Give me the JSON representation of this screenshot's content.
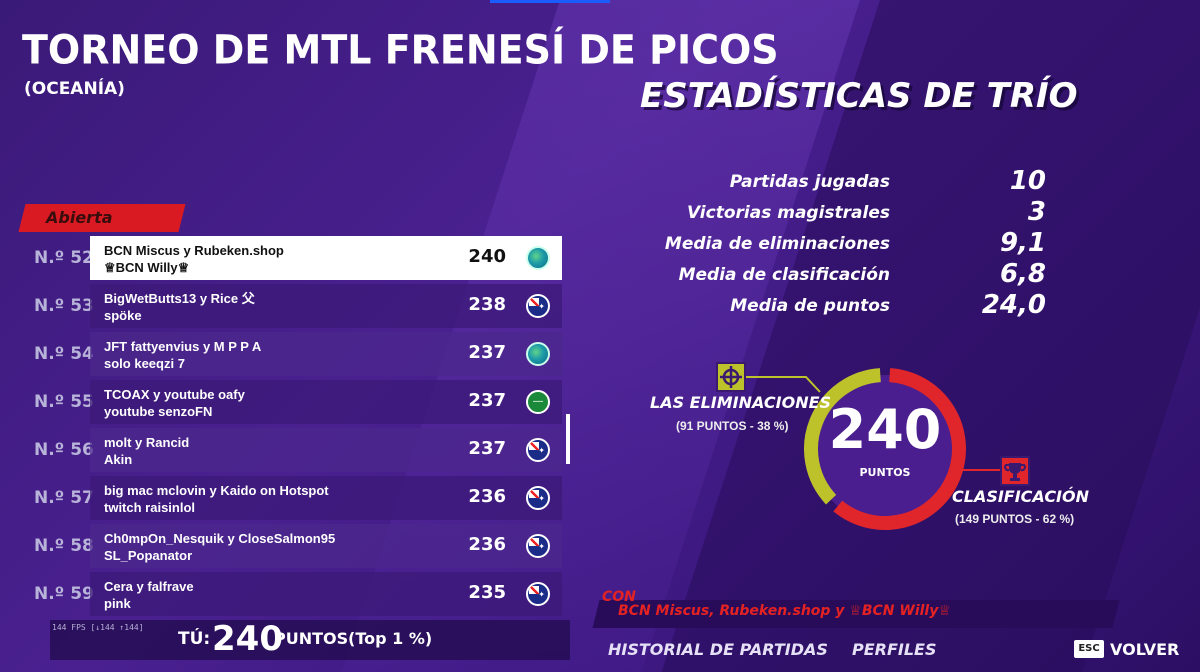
{
  "header": {
    "title": "TORNEO DE MTL FRENESÍ DE PICOS",
    "region": "(OCEANÍA)",
    "stats_title": "ESTADÍSTICAS DE TRÍO"
  },
  "stats": [
    {
      "label": "Partidas jugadas",
      "value": "10"
    },
    {
      "label": "Victorias magistrales",
      "value": "3"
    },
    {
      "label": "Media de eliminaciones",
      "value": "9,1"
    },
    {
      "label": "Media de clasificación",
      "value": "6,8"
    },
    {
      "label": "Media de puntos",
      "value": "24,0"
    }
  ],
  "leaderboard": {
    "tab": "Abierta",
    "rows": [
      {
        "rank": "N.º 52",
        "line1": "BCN Miscus y Rubeken.shop",
        "line2": "♕BCN Willy♕",
        "score": "240",
        "flag": "globe-icon",
        "highlight": true
      },
      {
        "rank": "N.º 53",
        "line1": "BigWetButts13 y Rice 父",
        "line2": "spöke",
        "score": "238",
        "flag": "australia-flag-icon"
      },
      {
        "rank": "N.º 54",
        "line1": "JFT fattyenvius y M P P A",
        "line2": "solo keeqzi 7",
        "score": "237",
        "flag": "globe-icon"
      },
      {
        "rank": "N.º 55",
        "line1": "TCOAX y youtube oafy",
        "line2": "youtube senzoFN",
        "score": "237",
        "flag": "saudi-flag-icon"
      },
      {
        "rank": "N.º 56",
        "line1": "molt y Rancid",
        "line2": "Akin",
        "score": "237",
        "flag": "australia-flag-icon"
      },
      {
        "rank": "N.º 57",
        "line1": "big mac mclovin y Kaido on Hotspot",
        "line2": "twitch raisinlol",
        "score": "236",
        "flag": "australia-flag-icon"
      },
      {
        "rank": "N.º 58",
        "line1": "Ch0mpOn_Nesquik y CloseSalmon95",
        "line2": "SL_Popanator",
        "score": "236",
        "flag": "australia-flag-icon"
      },
      {
        "rank": "N.º 59",
        "line1": "Cera y falfrave",
        "line2": "pink",
        "score": "235",
        "flag": "australia-flag-icon"
      }
    ]
  },
  "you": {
    "fps": "144 FPS [↓144 ↑144]",
    "label": "TÚ:",
    "score": "240",
    "units": "PUNTOS",
    "top": "(Top 1 %)"
  },
  "breakdown": {
    "total": "240",
    "total_label": "PUNTOS",
    "eliminations_label": "LAS ELIMINACIONES",
    "eliminations_sub": "(91 PUNTOS - 38 %)",
    "eliminations_fraction": 0.38,
    "placement_label": "CLASIFICACIÓN",
    "placement_sub": "(149 PUNTOS - 62 %)",
    "placement_fraction": 0.62,
    "colors": {
      "eliminations": "#bdc12a",
      "placement": "#e0262b"
    }
  },
  "team": {
    "con": "CON",
    "names": "BCN Miscus, Rubeken.shop y ♕BCN Willy♕"
  },
  "nav": {
    "history": "HISTORIAL DE PARTIDAS",
    "profiles": "PERFILES",
    "esc": "ESC",
    "back": "VOLVER"
  }
}
